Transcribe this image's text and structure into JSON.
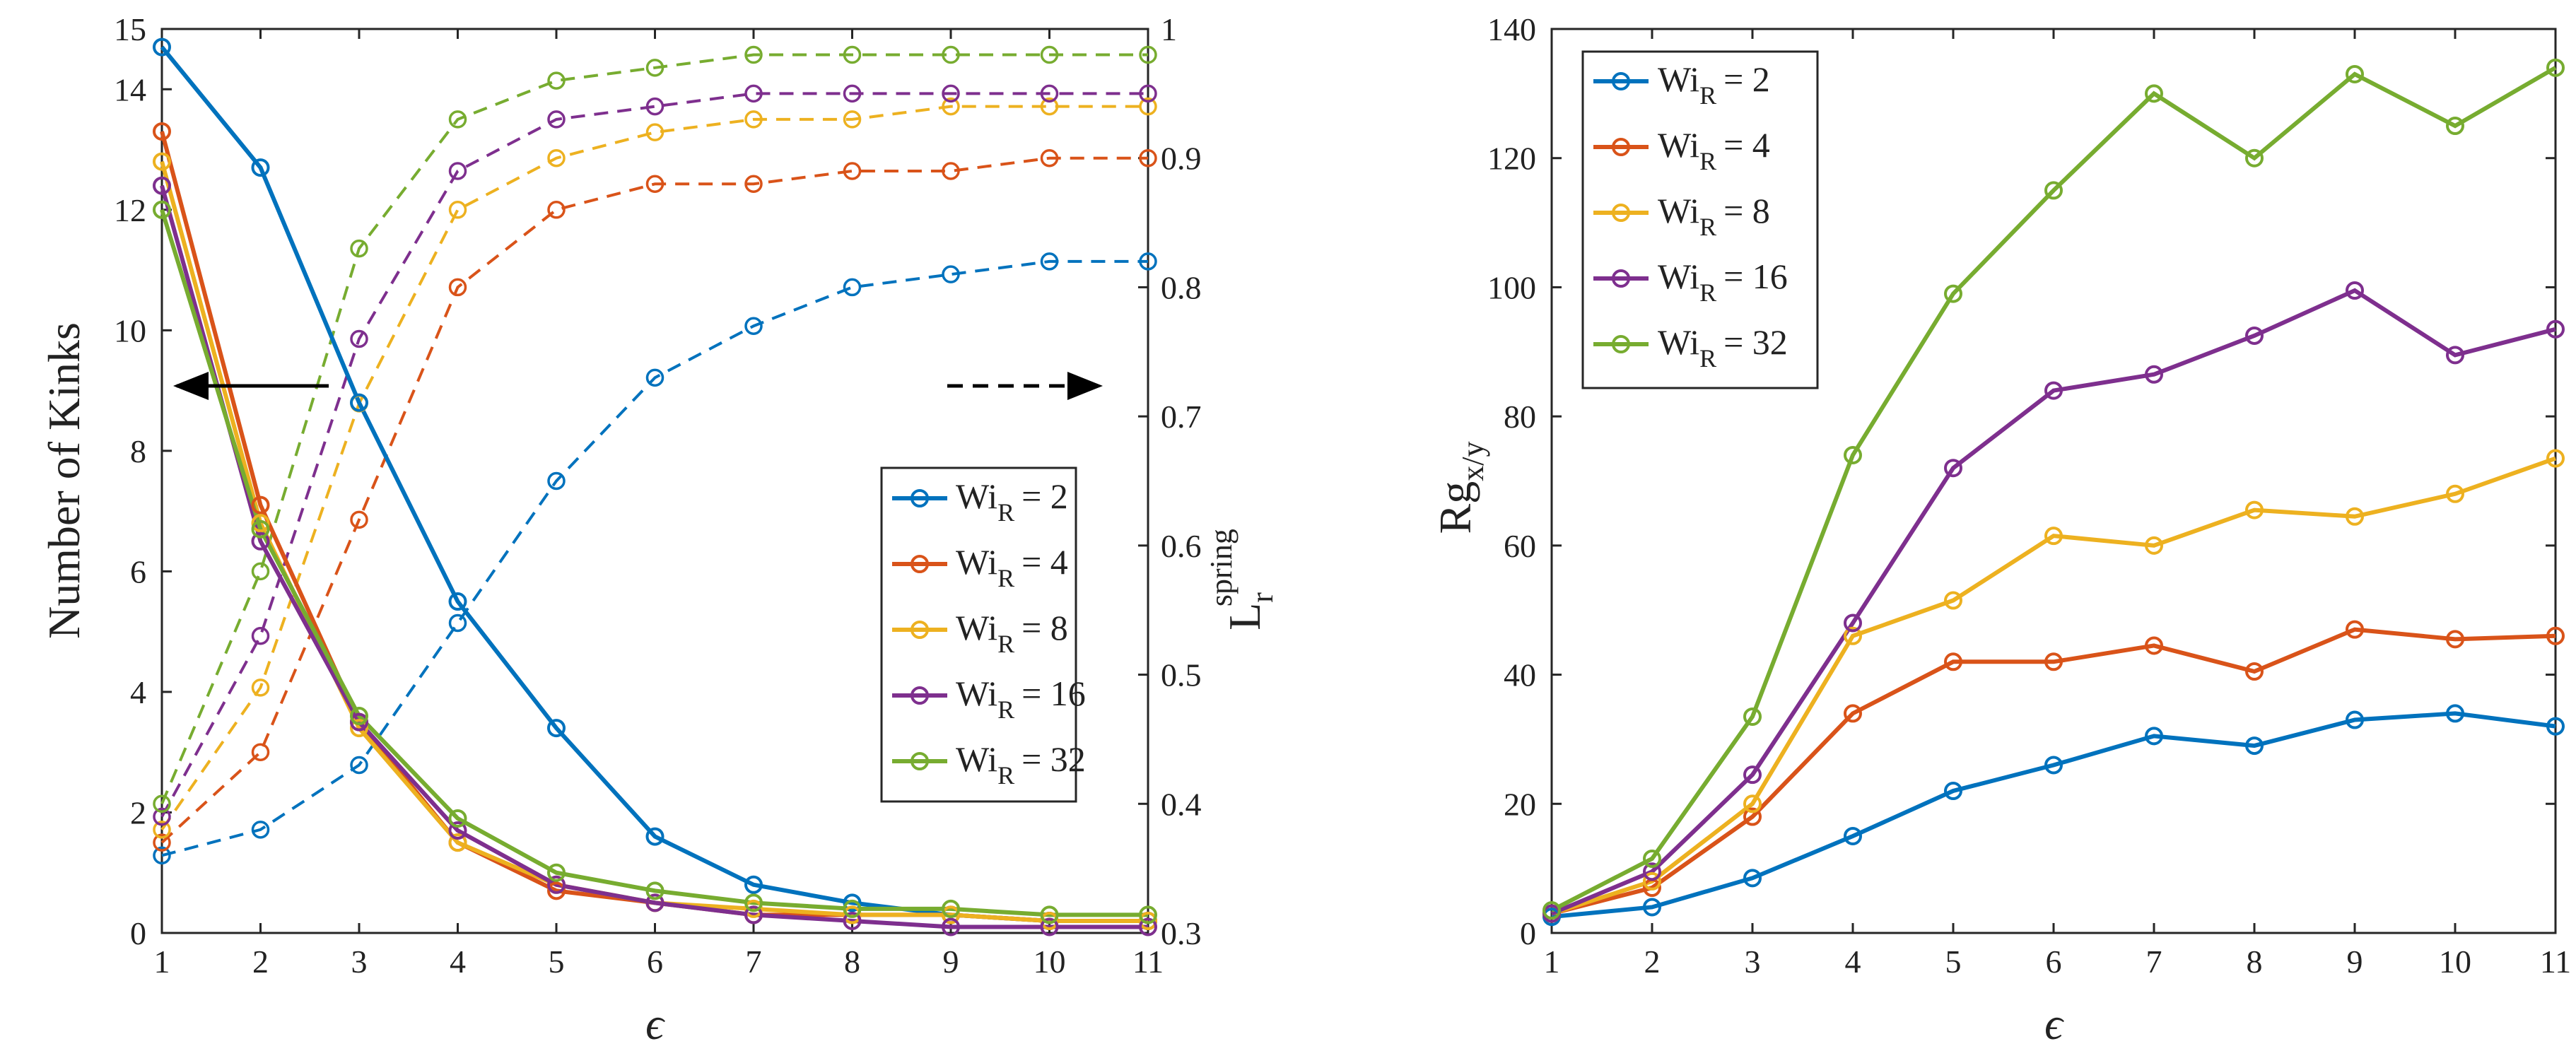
{
  "chart_data": [
    {
      "type": "line",
      "panel": "left",
      "xlabel": "ϵ",
      "ylabel": "Number of Kinks",
      "ylabel_right": {
        "base": "L",
        "subscript": "r",
        "superscript": "spring"
      },
      "x": [
        1,
        2,
        3,
        4,
        5,
        6,
        7,
        8,
        9,
        10,
        11
      ],
      "xlim": [
        1,
        11
      ],
      "ylim": [
        0,
        15
      ],
      "ylim_right": [
        0.3,
        1.0
      ],
      "xticks": [
        "1",
        "2",
        "3",
        "4",
        "5",
        "6",
        "7",
        "8",
        "9",
        "10",
        "11"
      ],
      "yticks": [
        "0",
        "2",
        "4",
        "6",
        "8",
        "10",
        "12",
        "14"
      ],
      "yticks_right": [
        "0.3",
        "0.4",
        "0.5",
        "0.6",
        "0.7",
        "0.8",
        "0.9",
        "1"
      ],
      "top_left_label": "15",
      "legend_position": "center-right",
      "annotations": [
        "solid arrow pointing left: kinks on left axis",
        "dashed arrow pointing right: L_r^spring on right axis"
      ],
      "series": [
        {
          "name": "Wi_R = 2",
          "label_prefix": "Wi",
          "label_sub": "R",
          "label_value": "= 2",
          "color": "#0072BD",
          "kinks": [
            14.7,
            12.7,
            8.8,
            5.5,
            3.4,
            1.6,
            0.8,
            0.5,
            0.3,
            0.2,
            0.2
          ],
          "lspring": [
            0.36,
            0.38,
            0.43,
            0.54,
            0.65,
            0.73,
            0.77,
            0.8,
            0.81,
            0.82,
            0.82
          ]
        },
        {
          "name": "Wi_R = 4",
          "label_prefix": "Wi",
          "label_sub": "R",
          "label_value": "= 4",
          "color": "#D95319",
          "kinks": [
            13.3,
            7.1,
            3.5,
            1.5,
            0.7,
            0.5,
            0.3,
            0.3,
            0.3,
            0.2,
            0.2
          ],
          "lspring": [
            0.37,
            0.44,
            0.62,
            0.8,
            0.86,
            0.88,
            0.88,
            0.89,
            0.89,
            0.9,
            0.9
          ]
        },
        {
          "name": "Wi_R = 8",
          "label_prefix": "Wi",
          "label_sub": "R",
          "label_value": "= 8",
          "color": "#EDB120",
          "kinks": [
            12.8,
            6.8,
            3.4,
            1.5,
            0.8,
            0.5,
            0.4,
            0.3,
            0.3,
            0.2,
            0.2
          ],
          "lspring": [
            0.38,
            0.49,
            0.71,
            0.86,
            0.9,
            0.92,
            0.93,
            0.93,
            0.94,
            0.94,
            0.94
          ]
        },
        {
          "name": "Wi_R = 16",
          "label_prefix": "Wi",
          "label_sub": "R",
          "label_value": "= 16",
          "color": "#7E2F8E",
          "kinks": [
            12.4,
            6.5,
            3.5,
            1.7,
            0.8,
            0.5,
            0.3,
            0.2,
            0.1,
            0.1,
            0.1
          ],
          "lspring": [
            0.39,
            0.53,
            0.76,
            0.89,
            0.93,
            0.94,
            0.95,
            0.95,
            0.95,
            0.95,
            0.95
          ]
        },
        {
          "name": "Wi_R = 32",
          "label_prefix": "Wi",
          "label_sub": "R",
          "label_value": "= 32",
          "color": "#77AC30",
          "kinks": [
            12.0,
            6.7,
            3.6,
            1.9,
            1.0,
            0.7,
            0.5,
            0.4,
            0.4,
            0.3,
            0.3
          ],
          "lspring": [
            0.4,
            0.58,
            0.83,
            0.93,
            0.96,
            0.97,
            0.98,
            0.98,
            0.98,
            0.98,
            0.98
          ]
        }
      ]
    },
    {
      "type": "line",
      "panel": "right",
      "xlabel": "ϵ",
      "ylabel": {
        "base": "Rg",
        "subscript": "x/y"
      },
      "x": [
        1,
        2,
        3,
        4,
        5,
        6,
        7,
        8,
        9,
        10,
        11
      ],
      "xlim": [
        1,
        11
      ],
      "ylim": [
        0,
        140
      ],
      "xticks": [
        "1",
        "2",
        "3",
        "4",
        "5",
        "6",
        "7",
        "8",
        "9",
        "10",
        "11"
      ],
      "yticks": [
        "0",
        "20",
        "40",
        "60",
        "80",
        "100",
        "120",
        "140"
      ],
      "legend_position": "top-left",
      "series": [
        {
          "name": "Wi_R = 2",
          "label_prefix": "Wi",
          "label_sub": "R",
          "label_value": "= 2",
          "color": "#0072BD",
          "values": [
            2.5,
            4,
            8.5,
            15,
            22,
            26,
            30.5,
            29,
            33,
            34,
            32
          ]
        },
        {
          "name": "Wi_R = 4",
          "label_prefix": "Wi",
          "label_sub": "R",
          "label_value": "= 4",
          "color": "#D95319",
          "values": [
            3,
            7,
            18,
            34,
            42,
            42,
            44.5,
            40.5,
            47,
            45.5,
            46
          ]
        },
        {
          "name": "Wi_R = 8",
          "label_prefix": "Wi",
          "label_sub": "R",
          "label_value": "= 8",
          "color": "#EDB120",
          "values": [
            3,
            8,
            20,
            46,
            51.5,
            61.5,
            60,
            65.5,
            64.5,
            68,
            73.5
          ]
        },
        {
          "name": "Wi_R = 16",
          "label_prefix": "Wi",
          "label_sub": "R",
          "label_value": "= 16",
          "color": "#7E2F8E",
          "values": [
            3,
            9.5,
            24.5,
            48,
            72,
            84,
            86.5,
            92.5,
            99.5,
            89.5,
            93.5
          ]
        },
        {
          "name": "Wi_R = 32",
          "label_prefix": "Wi",
          "label_sub": "R",
          "label_value": "= 32",
          "color": "#77AC30",
          "values": [
            3.5,
            11.5,
            33.5,
            74,
            99,
            115,
            130,
            120,
            133,
            125,
            134
          ]
        }
      ]
    }
  ]
}
